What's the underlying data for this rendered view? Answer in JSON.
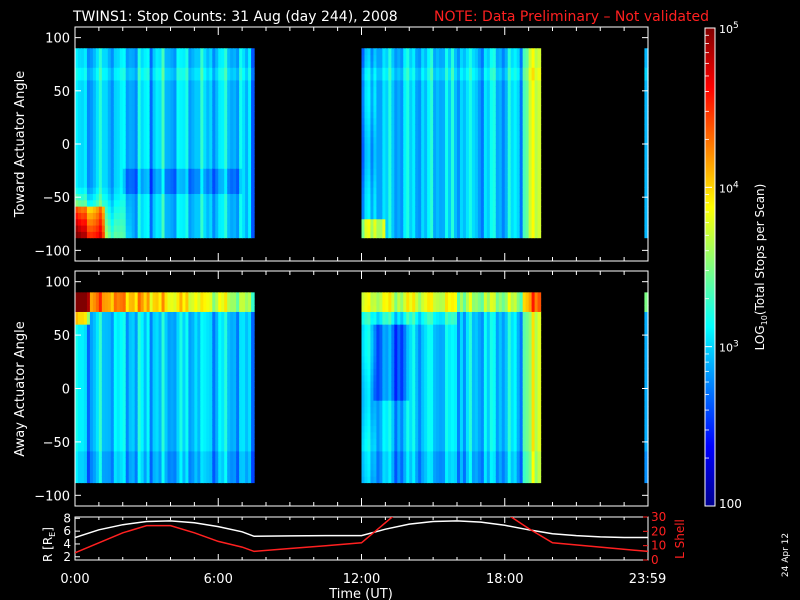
{
  "title": {
    "main": "TWINS1: Stop Counts: 31 Aug (day 244), 2008",
    "note": "NOTE: Data Preliminary – Not validated",
    "note_color": "#ff2020"
  },
  "date_stamp": "24 Apr 12",
  "panels": [
    {
      "id": "toward",
      "ylabel": "Toward Actuator Angle"
    },
    {
      "id": "away",
      "ylabel": "Away Actuator Angle"
    },
    {
      "id": "orbit",
      "ylabel_left": "R [R",
      "ylabel_left_sub": "E",
      "ylabel_left_end": "]",
      "ylabel_right": "L Shell"
    }
  ],
  "colorbar": {
    "label_pre": "LOG",
    "label_sub": "10",
    "label_post": "(Total Stops per Scan)",
    "tick_labels": [
      {
        "value": 100,
        "base": "100",
        "exp": ""
      },
      {
        "value": 1000,
        "base": "10",
        "exp": "3"
      },
      {
        "value": 10000,
        "base": "10",
        "exp": "4"
      },
      {
        "value": 100000,
        "base": "10",
        "exp": "5"
      }
    ],
    "range": [
      100,
      100000
    ],
    "scale": "log",
    "colormap": "jet"
  },
  "chart_data": [
    {
      "type": "heatmap",
      "panel": "toward",
      "ylabel": "Toward Actuator Angle",
      "xlim_hours": [
        0,
        24
      ],
      "ylim": [
        -110,
        110
      ],
      "y_ticks": [
        -100,
        -50,
        0,
        50,
        100
      ],
      "data_y_range": [
        -88,
        90
      ],
      "data_intervals_hours": [
        [
          0.0,
          7.5
        ],
        [
          12.0,
          19.5
        ],
        [
          23.85,
          24.0
        ]
      ],
      "z_scale": "log",
      "z_range": [
        100,
        100000
      ]
    },
    {
      "type": "heatmap",
      "panel": "away",
      "ylabel": "Away Actuator Angle",
      "xlim_hours": [
        0,
        24
      ],
      "ylim": [
        -110,
        110
      ],
      "y_ticks": [
        -100,
        -50,
        0,
        50,
        100
      ],
      "data_y_range": [
        -88,
        90
      ],
      "data_intervals_hours": [
        [
          0.0,
          7.5
        ],
        [
          12.0,
          19.5
        ],
        [
          23.85,
          24.0
        ]
      ],
      "z_scale": "log",
      "z_range": [
        100,
        100000
      ]
    },
    {
      "type": "line",
      "panel": "orbit",
      "xlabel": "Time (UT)",
      "x_tick_labels": [
        "0:00",
        "6:00",
        "12:00",
        "18:00",
        "23:59"
      ],
      "x_tick_hours": [
        0,
        6,
        12,
        18,
        23.98
      ],
      "ylim_left": [
        1.5,
        8.2
      ],
      "y_ticks_left": [
        2,
        4,
        6,
        8
      ],
      "ylim_right": [
        0,
        30
      ],
      "y_ticks_right": [
        0,
        10,
        20,
        30
      ],
      "series": [
        {
          "axis": "left",
          "color": "#ffffff",
          "x_hours": [
            0,
            1,
            2,
            3,
            4,
            5,
            6,
            7,
            7.5,
            9,
            10.5,
            12,
            13,
            14,
            15,
            16,
            17,
            18,
            19,
            20,
            21,
            22,
            23,
            24
          ],
          "y": [
            5.0,
            6.2,
            7.0,
            7.5,
            7.6,
            7.3,
            6.7,
            5.9,
            5.2,
            5.25,
            5.3,
            5.3,
            6.3,
            7.1,
            7.5,
            7.6,
            7.4,
            6.9,
            6.2,
            5.6,
            5.3,
            5.1,
            5.0,
            5.0
          ]
        },
        {
          "axis": "right",
          "color": "#ff2020",
          "x_hours": [
            0,
            1,
            2,
            3,
            4,
            5,
            6,
            7,
            7.5,
            9,
            10.5,
            12,
            13.5,
            18,
            19,
            20,
            22,
            24
          ],
          "y": [
            5,
            12,
            19,
            24,
            24,
            19,
            13,
            9,
            6,
            8,
            10,
            12,
            33,
            33,
            22,
            12,
            9,
            6
          ]
        }
      ]
    }
  ]
}
